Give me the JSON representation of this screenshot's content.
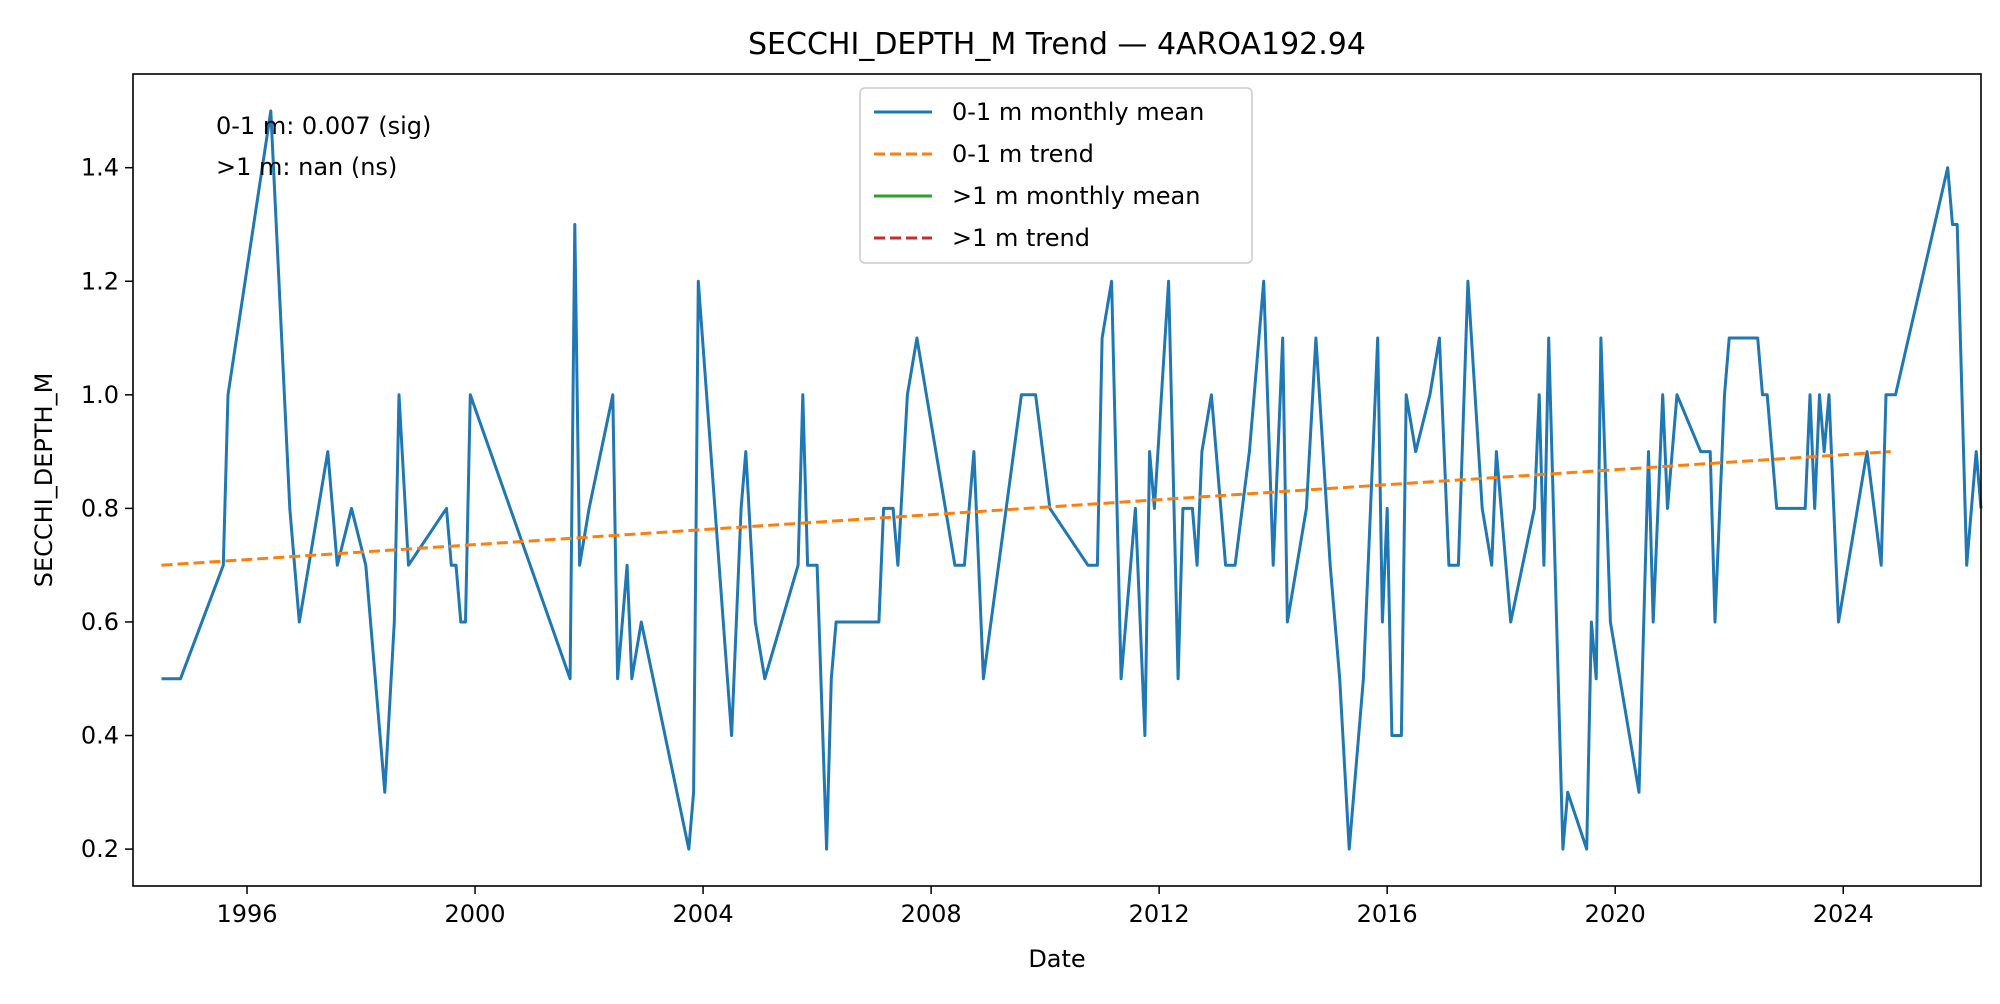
{
  "chart_data": {
    "type": "line",
    "title": "SECCHI_DEPTH_M Trend — 4AROA192.94",
    "xlabel": "Date",
    "ylabel": "SECCHI_DEPTH_M",
    "xlim": [
      "1994-01-01",
      "2026-06-01"
    ],
    "ylim": [
      0.135,
      1.565
    ],
    "x_ticks": [
      "1996",
      "2000",
      "2004",
      "2008",
      "2012",
      "2016",
      "2020",
      "2024"
    ],
    "y_ticks": [
      "0.2",
      "0.4",
      "0.6",
      "0.8",
      "1.0",
      "1.2",
      "1.4"
    ],
    "grid": false,
    "legend_position": "top-center",
    "annotations": [
      "0-1 m: 0.007 (sig)",
      ">1 m: nan (ns)"
    ],
    "series": [
      {
        "name": "0-1 m monthly mean",
        "color": "#1f77b4",
        "style": "solid",
        "points": [
          [
            "1994-07",
            0.5
          ],
          [
            "1994-11",
            0.5
          ],
          [
            "1995-08",
            0.7
          ],
          [
            "1995-09",
            1.0
          ],
          [
            "1996-06",
            1.5
          ],
          [
            "1996-10",
            0.8
          ],
          [
            "1996-12",
            0.6
          ],
          [
            "1997-06",
            0.9
          ],
          [
            "1997-08",
            0.7
          ],
          [
            "1997-11",
            0.8
          ],
          [
            "1998-02",
            0.7
          ],
          [
            "1998-06",
            0.3
          ],
          [
            "1998-08",
            0.6
          ],
          [
            "1998-09",
            1.0
          ],
          [
            "1998-11",
            0.7
          ],
          [
            "1999-07",
            0.8
          ],
          [
            "1999-08",
            0.7
          ],
          [
            "1999-09",
            0.7
          ],
          [
            "1999-10",
            0.6
          ],
          [
            "1999-11",
            0.6
          ],
          [
            "1999-12",
            1.0
          ],
          [
            "2001-09",
            0.5
          ],
          [
            "2001-10",
            1.3
          ],
          [
            "2001-11",
            0.7
          ],
          [
            "2002-01",
            0.8
          ],
          [
            "2002-06",
            1.0
          ],
          [
            "2002-07",
            0.5
          ],
          [
            "2002-09",
            0.7
          ],
          [
            "2002-10",
            0.5
          ],
          [
            "2002-12",
            0.6
          ],
          [
            "2003-10",
            0.2
          ],
          [
            "2003-11",
            0.3
          ],
          [
            "2003-12",
            1.2
          ],
          [
            "2004-07",
            0.4
          ],
          [
            "2004-09",
            0.8
          ],
          [
            "2004-10",
            0.9
          ],
          [
            "2004-12",
            0.6
          ],
          [
            "2005-02",
            0.5
          ],
          [
            "2005-09",
            0.7
          ],
          [
            "2005-10",
            1.0
          ],
          [
            "2005-11",
            0.7
          ],
          [
            "2006-01",
            0.7
          ],
          [
            "2006-03",
            0.2
          ],
          [
            "2006-04",
            0.5
          ],
          [
            "2006-05",
            0.6
          ],
          [
            "2007-02",
            0.6
          ],
          [
            "2007-03",
            0.8
          ],
          [
            "2007-05",
            0.8
          ],
          [
            "2007-06",
            0.7
          ],
          [
            "2007-08",
            1.0
          ],
          [
            "2007-10",
            1.1
          ],
          [
            "2008-06",
            0.7
          ],
          [
            "2008-08",
            0.7
          ],
          [
            "2008-10",
            0.9
          ],
          [
            "2008-12",
            0.5
          ],
          [
            "2009-08",
            1.0
          ],
          [
            "2009-10",
            1.0
          ],
          [
            "2009-11",
            1.0
          ],
          [
            "2010-02",
            0.8
          ],
          [
            "2010-10",
            0.7
          ],
          [
            "2010-12",
            0.7
          ],
          [
            "2011-01",
            1.1
          ],
          [
            "2011-03",
            1.2
          ],
          [
            "2011-05",
            0.5
          ],
          [
            "2011-08",
            0.8
          ],
          [
            "2011-10",
            0.4
          ],
          [
            "2011-11",
            0.9
          ],
          [
            "2011-12",
            0.8
          ],
          [
            "2012-03",
            1.2
          ],
          [
            "2012-05",
            0.5
          ],
          [
            "2012-06",
            0.8
          ],
          [
            "2012-08",
            0.8
          ],
          [
            "2012-09",
            0.7
          ],
          [
            "2012-10",
            0.9
          ],
          [
            "2012-12",
            1.0
          ],
          [
            "2013-03",
            0.7
          ],
          [
            "2013-05",
            0.7
          ],
          [
            "2013-08",
            0.9
          ],
          [
            "2013-09",
            1.0
          ],
          [
            "2013-11",
            1.2
          ],
          [
            "2014-01",
            0.7
          ],
          [
            "2014-03",
            1.1
          ],
          [
            "2014-04",
            0.6
          ],
          [
            "2014-08",
            0.8
          ],
          [
            "2014-10",
            1.1
          ],
          [
            "2015-01",
            0.7
          ],
          [
            "2015-03",
            0.5
          ],
          [
            "2015-05",
            0.2
          ],
          [
            "2015-08",
            0.5
          ],
          [
            "2015-11",
            1.1
          ],
          [
            "2015-12",
            0.6
          ],
          [
            "2016-01",
            0.8
          ],
          [
            "2016-02",
            0.4
          ],
          [
            "2016-04",
            0.4
          ],
          [
            "2016-05",
            1.0
          ],
          [
            "2016-07",
            0.9
          ],
          [
            "2016-10",
            1.0
          ],
          [
            "2016-12",
            1.1
          ],
          [
            "2017-02",
            0.7
          ],
          [
            "2017-04",
            0.7
          ],
          [
            "2017-06",
            1.2
          ],
          [
            "2017-09",
            0.8
          ],
          [
            "2017-11",
            0.7
          ],
          [
            "2017-12",
            0.9
          ],
          [
            "2018-03",
            0.6
          ],
          [
            "2018-08",
            0.8
          ],
          [
            "2018-09",
            1.0
          ],
          [
            "2018-10",
            0.7
          ],
          [
            "2018-11",
            1.1
          ],
          [
            "2019-02",
            0.2
          ],
          [
            "2019-03",
            0.3
          ],
          [
            "2019-07",
            0.2
          ],
          [
            "2019-08",
            0.6
          ],
          [
            "2019-09",
            0.5
          ],
          [
            "2019-10",
            1.1
          ],
          [
            "2019-12",
            0.6
          ],
          [
            "2020-06",
            0.3
          ],
          [
            "2020-08",
            0.9
          ],
          [
            "2020-09",
            0.6
          ],
          [
            "2020-11",
            1.0
          ],
          [
            "2020-12",
            0.8
          ],
          [
            "2021-02",
            1.0
          ],
          [
            "2021-07",
            0.9
          ],
          [
            "2021-09",
            0.9
          ],
          [
            "2021-10",
            0.6
          ],
          [
            "2021-12",
            1.0
          ],
          [
            "2022-01",
            1.1
          ],
          [
            "2022-07",
            1.1
          ],
          [
            "2022-08",
            1.0
          ],
          [
            "2022-09",
            1.0
          ],
          [
            "2022-11",
            0.8
          ],
          [
            "2023-02",
            0.8
          ],
          [
            "2023-05",
            0.8
          ],
          [
            "2023-06",
            1.0
          ],
          [
            "2023-07",
            0.8
          ],
          [
            "2023-08",
            1.0
          ],
          [
            "2023-09",
            0.9
          ],
          [
            "2023-10",
            1.0
          ],
          [
            "2023-12",
            0.6
          ],
          [
            "2024-06",
            0.9
          ],
          [
            "2024-09",
            0.7
          ],
          [
            "2024-10",
            1.0
          ],
          [
            "2024-12",
            1.0
          ],
          [
            "2025-11",
            1.4
          ],
          [
            "2025-12",
            1.3
          ],
          [
            "2026-01",
            1.3
          ],
          [
            "2026-03",
            0.7
          ],
          [
            "2026-05",
            0.9
          ],
          [
            "2026-06",
            0.8
          ]
        ]
      },
      {
        "name": "0-1 m trend",
        "color": "#ff7f0e",
        "style": "dashed",
        "points": [
          [
            "1994-07",
            0.7
          ],
          [
            "2024-11",
            0.9
          ]
        ]
      },
      {
        "name": ">1 m monthly mean",
        "color": "#2ca02c",
        "style": "solid",
        "points": []
      },
      {
        "name": ">1 m trend",
        "color": "#d62728",
        "style": "dashed",
        "points": []
      }
    ]
  }
}
